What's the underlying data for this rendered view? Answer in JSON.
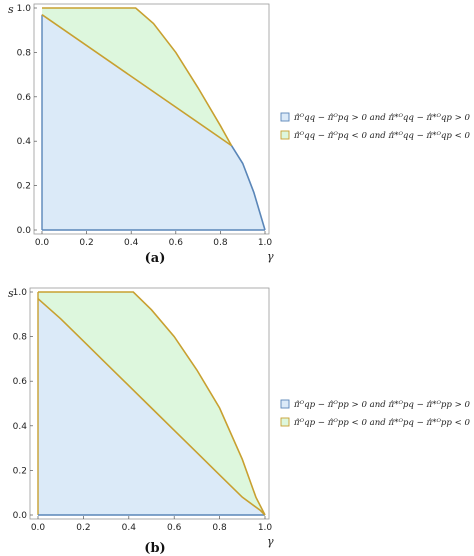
{
  "chart_data": [
    {
      "type": "area",
      "panel_label": "(a)",
      "xlabel": "γ",
      "ylabel": "s",
      "xlim": [
        0,
        1
      ],
      "ylim": [
        0,
        1
      ],
      "x_ticks": [
        "0.0",
        "0.2",
        "0.4",
        "0.6",
        "0.8",
        "1.0"
      ],
      "y_ticks": [
        "0.0",
        "0.2",
        "0.4",
        "0.6",
        "0.8",
        "1.0"
      ],
      "legend": [
        {
          "label": "π̂ᴼqq − π̂ᴼpq > 0 and π̂*ᴼqq − π̂*ᴼqp > 0",
          "color": "#dbeaf8",
          "border": "#5a86b8"
        },
        {
          "label": "π̂ᴼqq − π̂ᴼpq < 0 and π̂*ᴼqq − π̂*ᴼqp < 0",
          "color": "#ddf7dd",
          "border": "#c8a030"
        }
      ],
      "regions": {
        "blue": [
          [
            0,
            0
          ],
          [
            0,
            0.97
          ],
          [
            0.85,
            0.38
          ],
          [
            0.9,
            0.3
          ],
          [
            0.95,
            0.17
          ],
          [
            1.0,
            0
          ]
        ],
        "green": [
          [
            0,
            0.97
          ],
          [
            0,
            1.0
          ],
          [
            0.42,
            1.0
          ],
          [
            0.5,
            0.93
          ],
          [
            0.6,
            0.8
          ],
          [
            0.7,
            0.64
          ],
          [
            0.8,
            0.47
          ],
          [
            0.85,
            0.38
          ]
        ]
      },
      "lines": {
        "orange": [
          [
            0,
            0.97
          ],
          [
            0.85,
            0.38
          ]
        ],
        "upper": [
          [
            0,
            1.0
          ],
          [
            0.42,
            1.0
          ],
          [
            0.5,
            0.93
          ],
          [
            0.6,
            0.8
          ],
          [
            0.7,
            0.64
          ],
          [
            0.8,
            0.47
          ],
          [
            0.85,
            0.38
          ]
        ],
        "blue_edge": [
          [
            0.85,
            0.38
          ],
          [
            0.9,
            0.3
          ],
          [
            0.95,
            0.17
          ],
          [
            1.0,
            0
          ]
        ]
      }
    },
    {
      "type": "area",
      "panel_label": "(b)",
      "xlabel": "γ",
      "ylabel": "s",
      "xlim": [
        0,
        1
      ],
      "ylim": [
        0,
        1
      ],
      "x_ticks": [
        "0.0",
        "0.2",
        "0.4",
        "0.6",
        "0.8",
        "1.0"
      ],
      "y_ticks": [
        "0.0",
        "0.2",
        "0.4",
        "0.6",
        "0.8",
        "1.0"
      ],
      "legend": [
        {
          "label": "π̂ᴼqp − π̂ᴼpp > 0 and π̂*ᴼpq − π̂*ᴼpp > 0",
          "color": "#dbeaf8",
          "border": "#5a86b8"
        },
        {
          "label": "π̂ᴼqp − π̂ᴼpp < 0 and π̂*ᴼpq − π̂*ᴼpp < 0",
          "color": "#ddf7dd",
          "border": "#c8a030"
        }
      ],
      "regions": {
        "blue": [
          [
            0,
            0
          ],
          [
            0,
            0.97
          ],
          [
            0.1,
            0.88
          ],
          [
            0.2,
            0.78
          ],
          [
            0.3,
            0.68
          ],
          [
            0.4,
            0.58
          ],
          [
            0.5,
            0.48
          ],
          [
            0.6,
            0.38
          ],
          [
            0.7,
            0.28
          ],
          [
            0.8,
            0.18
          ],
          [
            0.9,
            0.08
          ],
          [
            0.98,
            0.02
          ],
          [
            1.0,
            0
          ]
        ],
        "green": [
          [
            0,
            0.97
          ],
          [
            0,
            1.0
          ],
          [
            0.42,
            1.0
          ],
          [
            0.5,
            0.92
          ],
          [
            0.6,
            0.8
          ],
          [
            0.7,
            0.65
          ],
          [
            0.8,
            0.48
          ],
          [
            0.9,
            0.25
          ],
          [
            0.96,
            0.08
          ],
          [
            1.0,
            0
          ],
          [
            0.98,
            0.02
          ],
          [
            0.9,
            0.08
          ],
          [
            0.8,
            0.18
          ],
          [
            0.7,
            0.28
          ],
          [
            0.6,
            0.38
          ],
          [
            0.5,
            0.48
          ],
          [
            0.4,
            0.58
          ],
          [
            0.3,
            0.68
          ],
          [
            0.2,
            0.78
          ],
          [
            0.1,
            0.88
          ]
        ]
      },
      "lines": {
        "orange_lower": [
          [
            0,
            0.97
          ],
          [
            0.1,
            0.88
          ],
          [
            0.2,
            0.78
          ],
          [
            0.3,
            0.68
          ],
          [
            0.4,
            0.58
          ],
          [
            0.5,
            0.48
          ],
          [
            0.6,
            0.38
          ],
          [
            0.7,
            0.28
          ],
          [
            0.8,
            0.18
          ],
          [
            0.9,
            0.08
          ],
          [
            0.98,
            0.02
          ],
          [
            1.0,
            0
          ]
        ],
        "upper": [
          [
            0,
            1.0
          ],
          [
            0.42,
            1.0
          ],
          [
            0.5,
            0.92
          ],
          [
            0.6,
            0.8
          ],
          [
            0.7,
            0.65
          ],
          [
            0.8,
            0.48
          ],
          [
            0.9,
            0.25
          ],
          [
            0.96,
            0.08
          ],
          [
            1.0,
            0
          ]
        ],
        "blue_edge": [
          [
            0,
            0
          ],
          [
            1.0,
            0
          ]
        ]
      }
    }
  ]
}
